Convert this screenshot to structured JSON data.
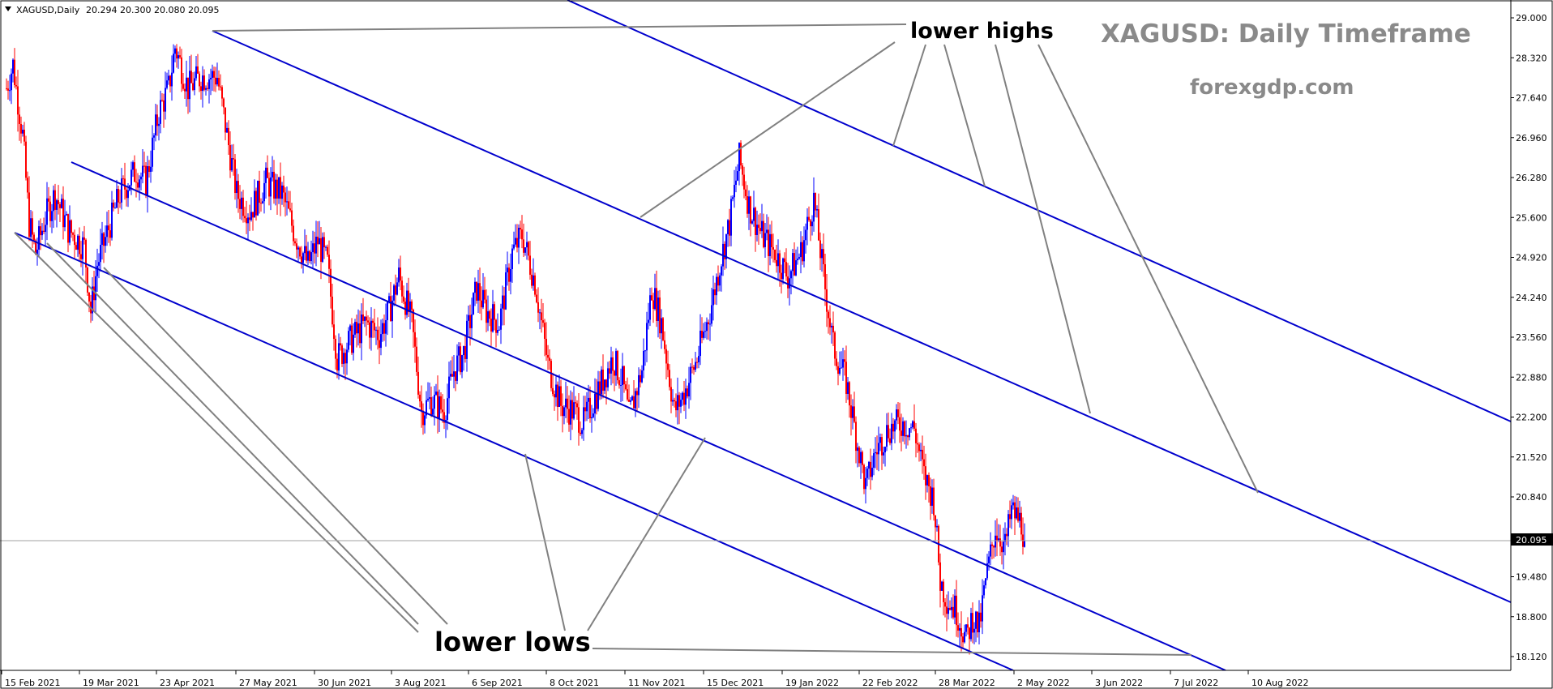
{
  "chart_data": {
    "type": "candlestick",
    "symbol_header": "XAGUSD,Daily",
    "ohlc_header": "20.294 20.300 20.080 20.095",
    "title": "XAGUSD: Daily Timeframe",
    "subtitle": "forexgdp.com",
    "current_price": 20.095,
    "current_price_label": "20.095",
    "ylim": [
      17.8,
      29.1
    ],
    "y_ticks": [
      "29.000",
      "28.320",
      "27.640",
      "26.960",
      "26.280",
      "25.600",
      "24.920",
      "24.240",
      "23.560",
      "22.880",
      "22.200",
      "21.520",
      "20.840",
      "20.160",
      "19.480",
      "18.800",
      "18.120"
    ],
    "x_ticks": [
      "15 Feb 2021",
      "19 Mar 2021",
      "23 Apr 2021",
      "27 May 2021",
      "30 Jun 2021",
      "3 Aug 2021",
      "6 Sep 2021",
      "8 Oct 2021",
      "11 Nov 2021",
      "15 Dec 2021",
      "19 Jan 2022",
      "22 Feb 2022",
      "28 Mar 2022",
      "2 May 2022",
      "3 Jun 2022",
      "7 Jul 2022",
      "10 Aug 2022"
    ],
    "price_path": [
      [
        0,
        27.8
      ],
      [
        4,
        28.2
      ],
      [
        10,
        27.0
      ],
      [
        14,
        25.5
      ],
      [
        18,
        25.0
      ],
      [
        24,
        25.6
      ],
      [
        30,
        26.0
      ],
      [
        38,
        25.4
      ],
      [
        48,
        25.1
      ],
      [
        52,
        24.0
      ],
      [
        56,
        24.8
      ],
      [
        64,
        25.5
      ],
      [
        70,
        26.0
      ],
      [
        80,
        26.4
      ],
      [
        86,
        26.2
      ],
      [
        94,
        27.4
      ],
      [
        100,
        27.8
      ],
      [
        104,
        28.5
      ],
      [
        112,
        27.8
      ],
      [
        120,
        28.0
      ],
      [
        130,
        28.0
      ],
      [
        136,
        27.0
      ],
      [
        142,
        26.0
      ],
      [
        150,
        25.7
      ],
      [
        160,
        26.2
      ],
      [
        170,
        26.0
      ],
      [
        178,
        25.3
      ],
      [
        186,
        24.8
      ],
      [
        192,
        25.2
      ],
      [
        198,
        24.8
      ],
      [
        204,
        23.2
      ],
      [
        212,
        23.5
      ],
      [
        222,
        23.8
      ],
      [
        230,
        23.6
      ],
      [
        236,
        24.0
      ],
      [
        242,
        24.6
      ],
      [
        250,
        23.8
      ],
      [
        256,
        22.3
      ],
      [
        262,
        22.5
      ],
      [
        270,
        22.3
      ],
      [
        276,
        23.0
      ],
      [
        282,
        23.3
      ],
      [
        290,
        24.4
      ],
      [
        296,
        24.0
      ],
      [
        304,
        23.8
      ],
      [
        312,
        25.0
      ],
      [
        318,
        25.3
      ],
      [
        326,
        24.5
      ],
      [
        334,
        23.1
      ],
      [
        342,
        22.4
      ],
      [
        350,
        22.3
      ],
      [
        356,
        22.1
      ],
      [
        364,
        22.6
      ],
      [
        374,
        23.2
      ],
      [
        380,
        22.8
      ],
      [
        384,
        22.2
      ],
      [
        392,
        23.0
      ],
      [
        398,
        24.4
      ],
      [
        404,
        23.8
      ],
      [
        412,
        22.3
      ],
      [
        418,
        22.6
      ],
      [
        426,
        23.2
      ],
      [
        434,
        24.0
      ],
      [
        440,
        24.8
      ],
      [
        446,
        25.5
      ],
      [
        452,
        26.6
      ],
      [
        458,
        25.8
      ],
      [
        466,
        25.3
      ],
      [
        474,
        25.0
      ],
      [
        482,
        24.6
      ],
      [
        490,
        25.0
      ],
      [
        498,
        25.9
      ],
      [
        504,
        24.6
      ],
      [
        510,
        23.4
      ],
      [
        518,
        22.8
      ],
      [
        524,
        21.9
      ],
      [
        530,
        21.0
      ],
      [
        536,
        21.6
      ],
      [
        544,
        22.0
      ],
      [
        552,
        22.1
      ],
      [
        560,
        22.0
      ],
      [
        566,
        21.2
      ],
      [
        572,
        20.8
      ],
      [
        576,
        19.4
      ],
      [
        580,
        19.1
      ],
      [
        586,
        18.9
      ],
      [
        592,
        18.4
      ],
      [
        596,
        18.8
      ],
      [
        600,
        18.6
      ],
      [
        604,
        19.4
      ],
      [
        610,
        20.3
      ],
      [
        616,
        20.0
      ],
      [
        620,
        20.6
      ],
      [
        626,
        20.4
      ],
      [
        628,
        20.1
      ]
    ]
  },
  "annotations": {
    "lower_highs": "lower highs",
    "lower_lows": "lower lows"
  },
  "colors": {
    "up_candle": "#0000ff",
    "down_candle": "#ff0000",
    "channel_line": "#0000cd",
    "pointer_line": "#808080",
    "watermark": "#8a8a8a"
  }
}
